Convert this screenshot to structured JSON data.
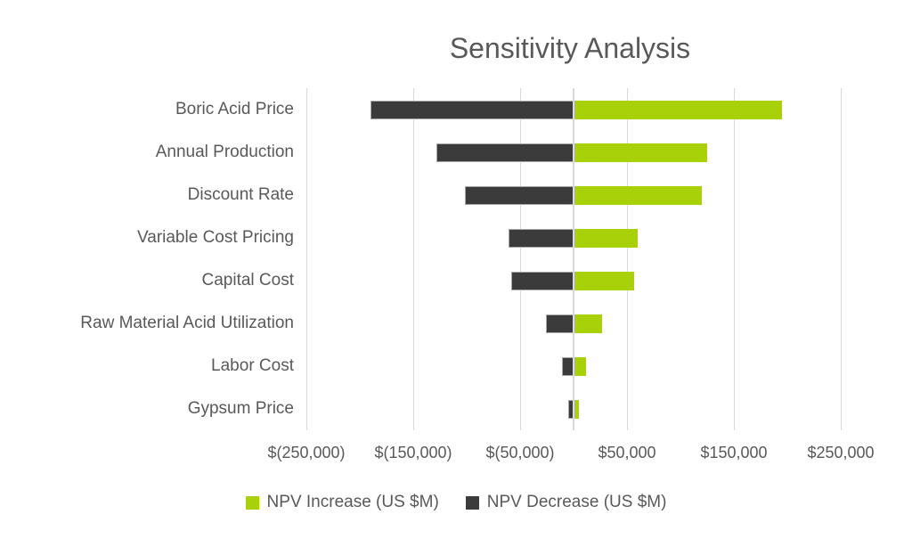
{
  "title": "Sensitivity Analysis",
  "colors": {
    "increase": "#A9D10A",
    "decrease": "#3B3B3B",
    "text": "#595959",
    "gridline": "#D9D9D9"
  },
  "legend": {
    "items": [
      {
        "label": "NPV Increase (US $M)",
        "series": "increase",
        "color": "#A9D10A"
      },
      {
        "label": "NPV Decrease (US $M)",
        "series": "decrease",
        "color": "#3B3B3B"
      }
    ]
  },
  "x_axis": {
    "min": -250000,
    "max": 250000,
    "major_unit": 100000,
    "tick_values": [
      -250000,
      -150000,
      -50000,
      50000,
      150000,
      250000
    ],
    "tick_labels": [
      "$(250,000)",
      "$(150,000)",
      "$(50,000)",
      "$50,000",
      "$150,000",
      "$250,000"
    ]
  },
  "chart_data": {
    "type": "bar",
    "subtype": "tornado-diverging-horizontal",
    "title": "Sensitivity Analysis",
    "xlabel": "",
    "ylabel": "",
    "xlim": [
      -250000,
      250000
    ],
    "grid": true,
    "legend_position": "bottom",
    "categories": [
      "Boric Acid Price",
      "Annual Production",
      "Discount Rate",
      "Variable Cost Pricing",
      "Capital Cost",
      "Raw Material Acid Utilization",
      "Labor Cost",
      "Gypsum Price"
    ],
    "series": [
      {
        "name": "NPV Increase (US $M)",
        "color": "#A9D10A",
        "values": [
          195000,
          125000,
          120000,
          60000,
          57000,
          27000,
          12000,
          5000
        ]
      },
      {
        "name": "NPV Decrease (US $M)",
        "color": "#3B3B3B",
        "values": [
          -190000,
          -128000,
          -102000,
          -61000,
          -58000,
          -26000,
          -11000,
          -5000
        ]
      }
    ]
  }
}
